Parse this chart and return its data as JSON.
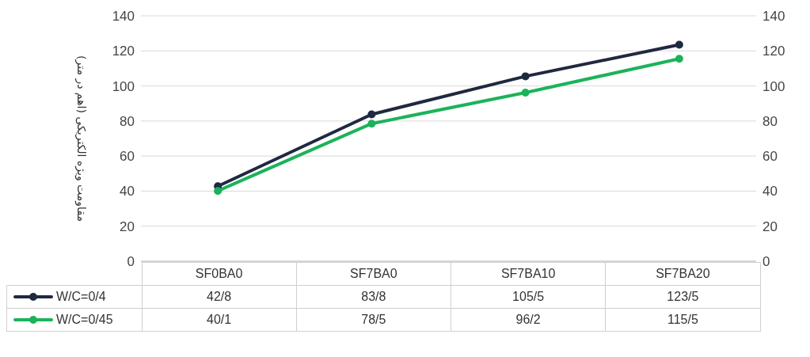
{
  "chart_data": {
    "type": "line",
    "ylabel": "مقاومت ویژه الکتریکی (اهم در متر)",
    "categories": [
      "SF0BA0",
      "SF7BA0",
      "SF7BA10",
      "SF7BA20"
    ],
    "series": [
      {
        "name": "W/C=0/4",
        "color": "#1f2940",
        "values": [
          42.8,
          83.8,
          105.5,
          123.5
        ],
        "value_labels": [
          "42/8",
          "83/8",
          "105/5",
          "123/5"
        ]
      },
      {
        "name": "W/C=0/45",
        "color": "#1bb35a",
        "values": [
          40.1,
          78.5,
          96.2,
          115.5
        ],
        "value_labels": [
          "40/1",
          "78/5",
          "96/2",
          "115/5"
        ]
      }
    ],
    "ylim": [
      0,
      140
    ],
    "yticks": [
      0,
      20,
      40,
      60,
      80,
      100,
      120,
      140
    ],
    "y2lim": [
      0,
      140
    ],
    "y2ticks": [
      0,
      20,
      40,
      60,
      80,
      100,
      120,
      140
    ],
    "grid": "y",
    "legend": "bottom left",
    "marker": "circle",
    "line_style": "solid"
  }
}
